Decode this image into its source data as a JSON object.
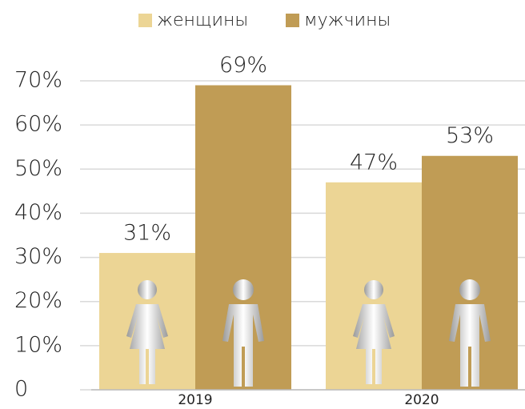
{
  "chart_data": {
    "type": "bar",
    "categories": [
      "2019",
      "2020"
    ],
    "series": [
      {
        "name": "женщины",
        "color": "#ecd595",
        "values": [
          31,
          47
        ],
        "value_labels": [
          "31%",
          "47%"
        ]
      },
      {
        "name": "мужчины",
        "color": "#c09c55",
        "values": [
          69,
          53
        ],
        "value_labels": [
          "69%",
          "53%"
        ]
      }
    ],
    "ylim": [
      0,
      70
    ],
    "yticks": [
      0,
      {
        "value": 10,
        "label": "10%"
      },
      {
        "value": 20,
        "label": "20%"
      },
      {
        "value": 30,
        "label": "30%"
      },
      {
        "value": 40,
        "label": "40%"
      },
      {
        "value": 50,
        "label": "50%"
      },
      {
        "value": 60,
        "label": "60%"
      },
      {
        "value": 70,
        "label": "70%"
      }
    ],
    "grid": true,
    "legend": "top"
  }
}
